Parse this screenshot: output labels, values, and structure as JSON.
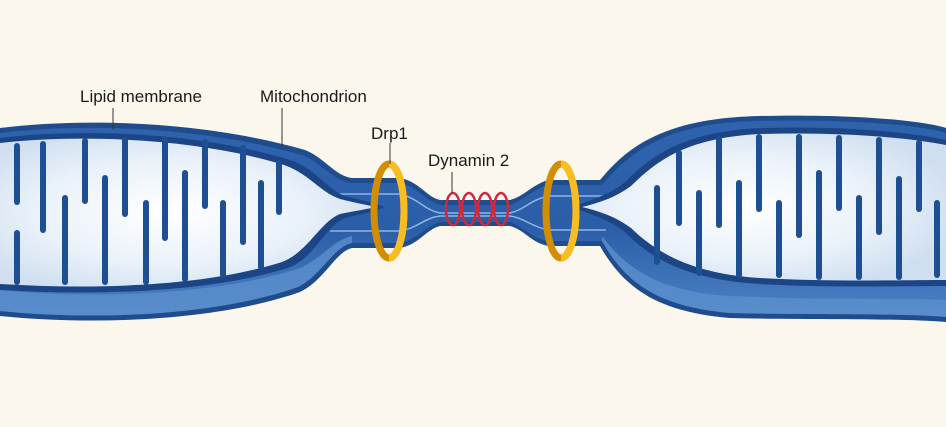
{
  "labels": {
    "lipid_membrane": "Lipid membrane",
    "mitochondrion": "Mitochondrion",
    "drp1": "Drp1",
    "dynamin2": "Dynamin 2"
  },
  "colors": {
    "background": "#fbf7ec",
    "outer_membrane": "#3d6fb4",
    "outer_edge": "#1e4a8a",
    "intermembrane": "#2e66b0",
    "matrix": "#e6f0f8",
    "cristae": "#1f4f93",
    "drp1_ring": "#f5b91c",
    "dynamin2_ring": "#d1283e"
  }
}
